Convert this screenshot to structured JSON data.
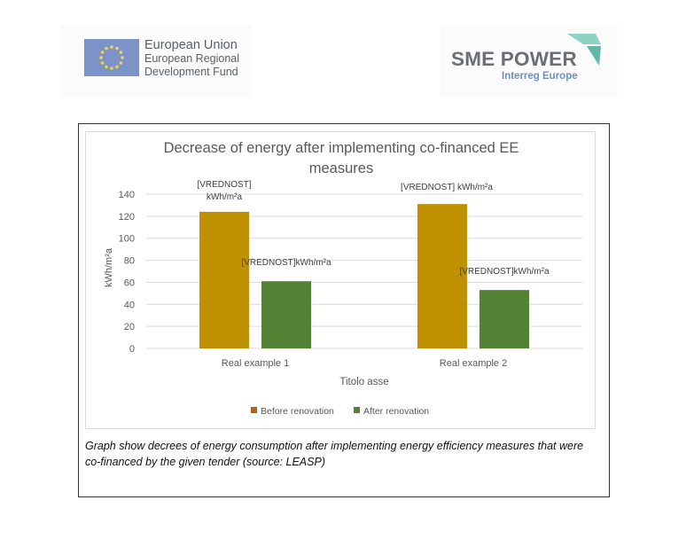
{
  "logos": {
    "eu": {
      "line1": "European Union",
      "line2": "European Regional",
      "line3": "Development Fund"
    },
    "sme": {
      "title": "SME POWER",
      "subtitle": "Interreg Europe"
    }
  },
  "chart_data": {
    "type": "bar",
    "title_line1": "Decrease of energy after implementing co-financed EE",
    "title_line2": "measures",
    "xlabel": "Titolo asse",
    "ylabel": "kWh/m²a",
    "categories": [
      "Real example 1",
      "Real example 2"
    ],
    "ylim": [
      0,
      140
    ],
    "yticks": [
      0,
      20,
      40,
      60,
      80,
      100,
      120,
      140
    ],
    "grid": true,
    "legend_position": "bottom",
    "series": [
      {
        "name": "Before renovation",
        "color": "#bf9000",
        "values": [
          124,
          131
        ],
        "labels": [
          "[VREDNOST] kWh/m²a",
          "[VREDNOST] kWh/m²a"
        ]
      },
      {
        "name": "After renovation",
        "color": "#548235",
        "values": [
          61,
          53
        ],
        "labels": [
          "[VREDNOST]kWh/m²a",
          "[VREDNOST]kWh/m²a"
        ]
      }
    ],
    "legend_marker_colors": [
      "#c55a11",
      "#548235"
    ]
  },
  "caption": "Graph show decrees of energy consumption after implementing energy efficiency measures that were co-financed by the given tender (source: LEASP)"
}
